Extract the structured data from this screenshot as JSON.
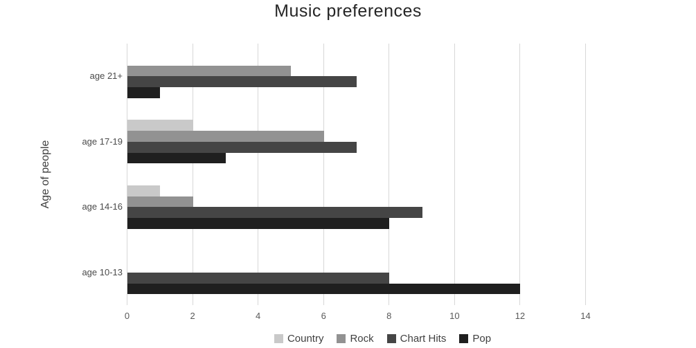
{
  "title": "Music preferences",
  "chart_data": {
    "type": "bar",
    "orientation": "horizontal",
    "title": "Music preferences",
    "ylabel": "Age of people",
    "xlabel": "",
    "categories": [
      "age 21+",
      "age 17-19",
      "age 14-16",
      "age 10-13"
    ],
    "series": [
      {
        "name": "Country",
        "color": "#c9c9c9",
        "values": [
          0,
          2,
          1,
          0
        ]
      },
      {
        "name": "Rock",
        "color": "#929292",
        "values": [
          5,
          6,
          2,
          0
        ]
      },
      {
        "name": "Chart Hits",
        "color": "#454545",
        "values": [
          7,
          7,
          9,
          8
        ]
      },
      {
        "name": "Pop",
        "color": "#1f1f1f",
        "values": [
          1,
          3,
          8,
          12
        ]
      }
    ],
    "xlim": [
      0,
      14
    ],
    "x_ticks": [
      0,
      2,
      4,
      6,
      8,
      10,
      12,
      14
    ],
    "grid": true,
    "gridline_color": "#d7d7d7",
    "tick_label_color": "#595959",
    "category_label_color": "#4a4a4a",
    "legend_position": "bottom"
  }
}
